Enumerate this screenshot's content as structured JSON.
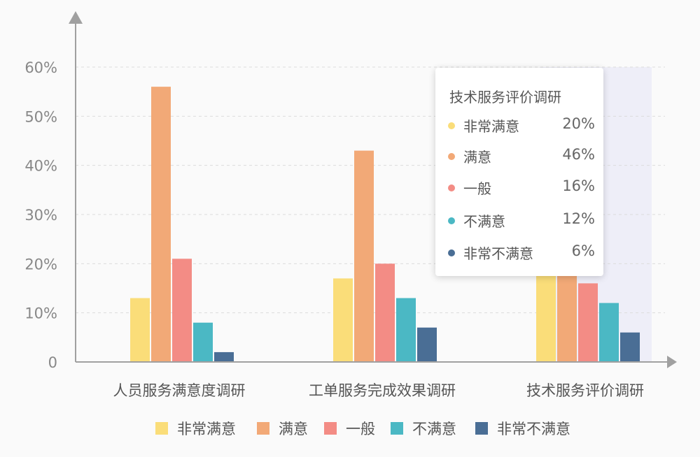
{
  "chart_data": {
    "type": "bar",
    "categories": [
      "人员服务满意度调研",
      "工单服务完成效果调研",
      "技术服务评价调研"
    ],
    "series": [
      {
        "name": "非常满意",
        "color": "#fadd79",
        "values": [
          13,
          17,
          20
        ]
      },
      {
        "name": "满意",
        "color": "#f2a977",
        "values": [
          56,
          43,
          46
        ]
      },
      {
        "name": "一般",
        "color": "#f38c85",
        "values": [
          21,
          20,
          16
        ]
      },
      {
        "name": "不满意",
        "color": "#4bb8c4",
        "values": [
          8,
          13,
          12
        ]
      },
      {
        "name": "非常不满意",
        "color": "#4a6e95",
        "values": [
          2,
          7,
          6
        ]
      }
    ],
    "ylim": [
      0,
      60
    ],
    "yticks": [
      0,
      10,
      20,
      30,
      40,
      50,
      60
    ],
    "ytick_labels": [
      "0",
      "10%",
      "20%",
      "30%",
      "40%",
      "50%",
      "60%"
    ],
    "grid": true,
    "legend_position": "bottom-center",
    "highlighted_category": 2
  },
  "tooltip": {
    "title": "技术服务评价调研",
    "rows": [
      {
        "name": "非常满意",
        "value": "20%",
        "color": "#fadd79"
      },
      {
        "name": "满意",
        "value": "46%",
        "color": "#f2a977"
      },
      {
        "name": "一般",
        "value": "16%",
        "color": "#f38c85"
      },
      {
        "name": "不满意",
        "value": "12%",
        "color": "#4bb8c4"
      },
      {
        "name": "非常不满意",
        "value": "6%",
        "color": "#4a6e95"
      }
    ]
  }
}
